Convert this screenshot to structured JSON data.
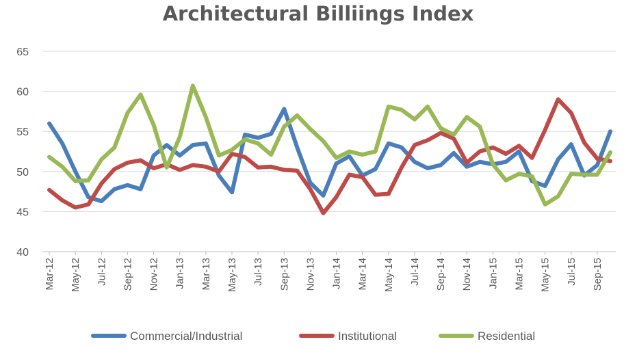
{
  "chart_data": {
    "type": "line",
    "title": "Architectural Billiings Index",
    "xlabel": "",
    "ylabel": "",
    "ylim": [
      40,
      65
    ],
    "yticks": [
      40,
      45,
      50,
      55,
      60,
      65
    ],
    "grid": true,
    "legend": "bottom",
    "categories": [
      "Mar-12",
      "Apr-12",
      "May-12",
      "Jun-12",
      "Jul-12",
      "Aug-12",
      "Sep-12",
      "Oct-12",
      "Nov-12",
      "Dec-12",
      "Jan-13",
      "Feb-13",
      "Mar-13",
      "Apr-13",
      "May-13",
      "Jun-13",
      "Jul-13",
      "Aug-13",
      "Sep-13",
      "Oct-13",
      "Nov-13",
      "Dec-13",
      "Jan-14",
      "Feb-14",
      "Mar-14",
      "Apr-14",
      "May-14",
      "Jun-14",
      "Jul-14",
      "Aug-14",
      "Sep-14",
      "Oct-14",
      "Nov-14",
      "Dec-14",
      "Jan-15",
      "Feb-15",
      "Mar-15",
      "Apr-15",
      "May-15",
      "Jun-15",
      "Jul-15",
      "Aug-15",
      "Sep-15",
      "Oct-15"
    ],
    "x_tick_labels": [
      "Mar-12",
      "May-12",
      "Jul-12",
      "Sep-12",
      "Nov-12",
      "Jan-13",
      "Mar-13",
      "May-13",
      "Jul-13",
      "Sep-13",
      "Nov-13",
      "Jan-14",
      "Mar-14",
      "May-14",
      "Jul-14",
      "Sep-14",
      "Nov-14",
      "Jan-15",
      "Mar-15",
      "May-15",
      "Jul-15",
      "Sep-15"
    ],
    "series": [
      {
        "name": "Commercial/Industrial",
        "color": "#4a7ebb",
        "values": [
          56.0,
          53.5,
          50.0,
          46.8,
          46.3,
          47.8,
          48.3,
          47.8,
          52.0,
          53.3,
          52.0,
          53.3,
          53.5,
          49.5,
          47.4,
          54.6,
          54.2,
          54.7,
          57.8,
          53.0,
          48.6,
          47.0,
          51.0,
          51.9,
          49.5,
          50.3,
          53.5,
          53.0,
          51.2,
          50.4,
          50.8,
          52.3,
          50.6,
          51.2,
          50.9,
          51.2,
          52.5,
          48.8,
          48.2,
          51.5,
          53.4,
          49.5,
          50.8,
          55.0
        ]
      },
      {
        "name": "Institutional",
        "color": "#be4b48",
        "values": [
          47.7,
          46.4,
          45.5,
          45.9,
          48.5,
          50.3,
          51.1,
          51.4,
          50.4,
          50.9,
          50.2,
          50.8,
          50.6,
          50.0,
          52.2,
          51.8,
          50.5,
          50.6,
          50.2,
          50.1,
          47.8,
          44.8,
          46.8,
          49.6,
          49.3,
          47.1,
          47.2,
          50.5,
          53.3,
          53.9,
          54.8,
          54.1,
          51.1,
          52.5,
          53.0,
          52.2,
          53.2,
          51.7,
          55.2,
          59.0,
          57.3,
          53.6,
          51.6,
          51.3
        ]
      },
      {
        "name": "Residential",
        "color": "#98b954",
        "values": [
          51.8,
          50.6,
          48.8,
          48.9,
          51.5,
          53.0,
          57.3,
          59.6,
          55.8,
          50.5,
          54.3,
          60.7,
          56.8,
          52.0,
          52.7,
          54.0,
          53.5,
          52.1,
          55.6,
          57.0,
          55.3,
          53.8,
          51.7,
          52.5,
          52.1,
          52.5,
          58.1,
          57.7,
          56.5,
          58.1,
          55.4,
          54.6,
          56.8,
          55.6,
          50.9,
          48.9,
          49.7,
          49.4,
          45.9,
          46.9,
          49.7,
          49.6,
          49.6,
          52.4
        ]
      }
    ]
  }
}
